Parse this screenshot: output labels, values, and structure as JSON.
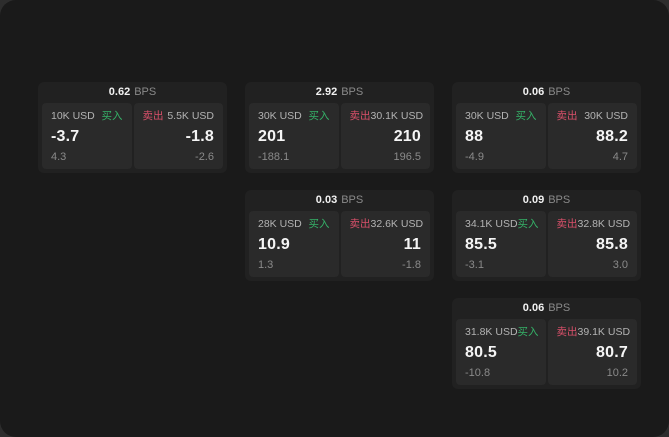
{
  "page": {
    "surface_color": "#1a1a1a",
    "backdrop_color": "#2d2d2d",
    "card_color": "#212121",
    "panel_color": "#2a2a2a",
    "buy_color": "#35b268",
    "sell_color": "#d9506a"
  },
  "labels": {
    "bps_unit": "BPS",
    "buy": "买入",
    "sell": "卖出"
  },
  "cards": [
    {
      "bps": "0.62",
      "buy": {
        "size": "10K USD",
        "price": "-3.7",
        "delta": "4.3"
      },
      "sell": {
        "size": "5.5K USD",
        "price": "-1.8",
        "delta": "-2.6"
      }
    },
    {
      "bps": "2.92",
      "buy": {
        "size": "30K USD",
        "price": "201",
        "delta": "-188.1"
      },
      "sell": {
        "size": "30.1K USD",
        "price": "210",
        "delta": "196.5"
      }
    },
    {
      "bps": "0.06",
      "buy": {
        "size": "30K USD",
        "price": "88",
        "delta": "-4.9"
      },
      "sell": {
        "size": "30K USD",
        "price": "88.2",
        "delta": "4.7"
      }
    },
    {
      "bps": "0.03",
      "buy": {
        "size": "28K USD",
        "price": "10.9",
        "delta": "1.3"
      },
      "sell": {
        "size": "32.6K USD",
        "price": "11",
        "delta": "-1.8"
      }
    },
    {
      "bps": "0.09",
      "buy": {
        "size": "34.1K USD",
        "price": "85.5",
        "delta": "-3.1"
      },
      "sell": {
        "size": "32.8K USD",
        "price": "85.8",
        "delta": "3.0"
      }
    },
    {
      "bps": "0.06",
      "buy": {
        "size": "31.8K USD",
        "price": "80.5",
        "delta": "-10.8"
      },
      "sell": {
        "size": "39.1K USD",
        "price": "80.7",
        "delta": "10.2"
      }
    }
  ]
}
